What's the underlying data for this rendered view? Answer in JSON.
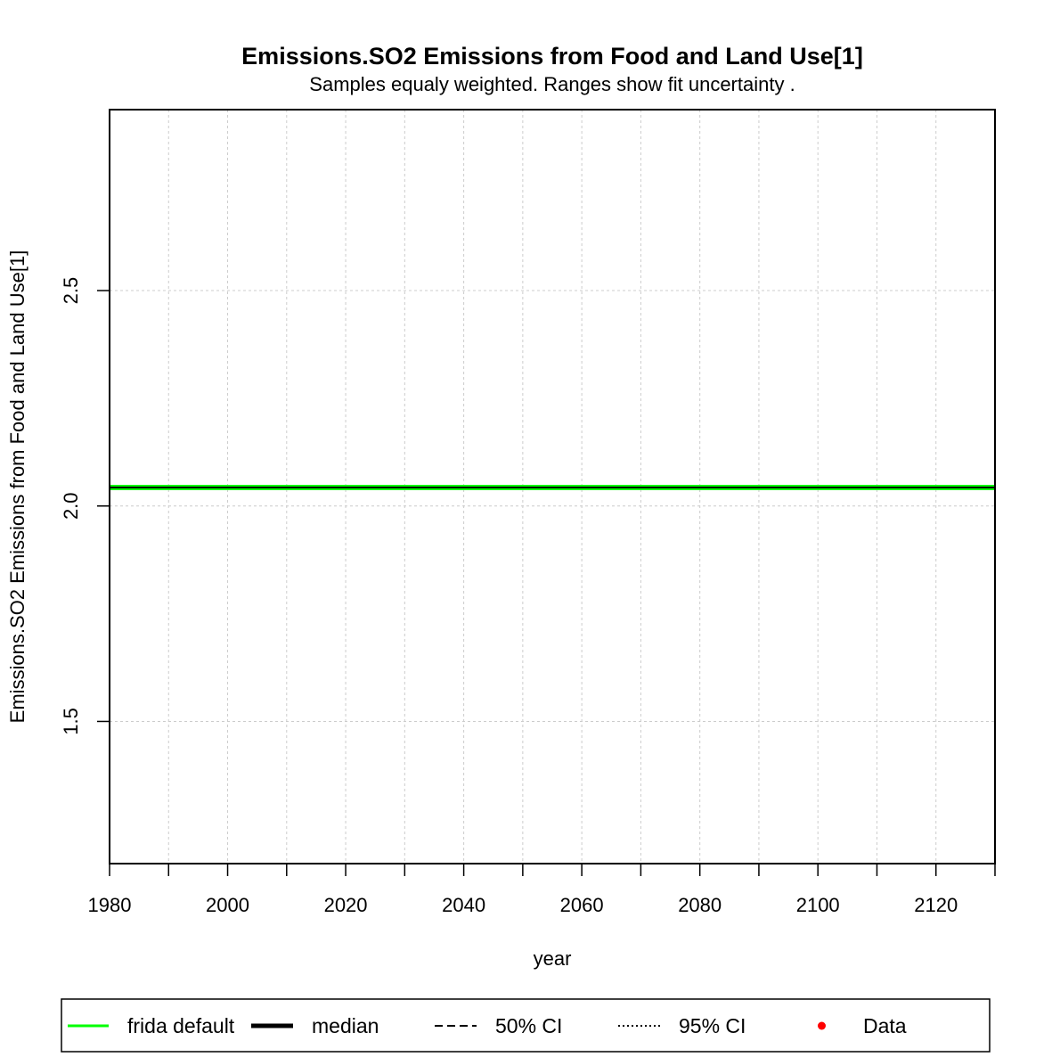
{
  "chart_data": {
    "type": "line",
    "title": "Emissions.SO2 Emissions from Food and Land Use[1]",
    "subtitle": "Samples equaly weighted. Ranges show  fit uncertainty .",
    "xlabel": "year",
    "ylabel": "Emissions.SO2 Emissions from Food and Land Use[1]",
    "xlim": [
      1980,
      2130
    ],
    "ylim": [
      1.17,
      2.92
    ],
    "x_major_ticks": [
      1980,
      2000,
      2020,
      2040,
      2060,
      2080,
      2100,
      2120
    ],
    "x_minor_ticks": [
      1980,
      1990,
      2000,
      2010,
      2020,
      2030,
      2040,
      2050,
      2060,
      2070,
      2080,
      2090,
      2100,
      2110,
      2120,
      2130
    ],
    "y_ticks": [
      1.5,
      2.0,
      2.5
    ],
    "x_tick_labels": [
      "1980",
      "2000",
      "2020",
      "2040",
      "2060",
      "2080",
      "2100",
      "2120"
    ],
    "y_tick_labels": [
      "1.5",
      "2.0",
      "2.5"
    ],
    "grid": true,
    "series": [
      {
        "name": "frida default",
        "color": "#00ff00",
        "style": "solid",
        "x": [
          1980,
          2130
        ],
        "y": [
          2.043,
          2.043
        ]
      },
      {
        "name": "median",
        "color": "#000000",
        "style": "solid",
        "x": [
          1980,
          2130
        ],
        "y": [
          2.043,
          2.043
        ]
      }
    ],
    "legend": {
      "position": "bottom",
      "items": [
        {
          "label": "frida default",
          "kind": "line",
          "color": "#00ff00",
          "dash": "solid"
        },
        {
          "label": "median",
          "kind": "line",
          "color": "#000000",
          "dash": "solid-thick"
        },
        {
          "label": "50% CI",
          "kind": "line",
          "color": "#000000",
          "dash": "dashed"
        },
        {
          "label": "95% CI",
          "kind": "line",
          "color": "#000000",
          "dash": "dotted"
        },
        {
          "label": "Data",
          "kind": "point",
          "color": "#ff0000",
          "dash": ""
        }
      ]
    }
  }
}
